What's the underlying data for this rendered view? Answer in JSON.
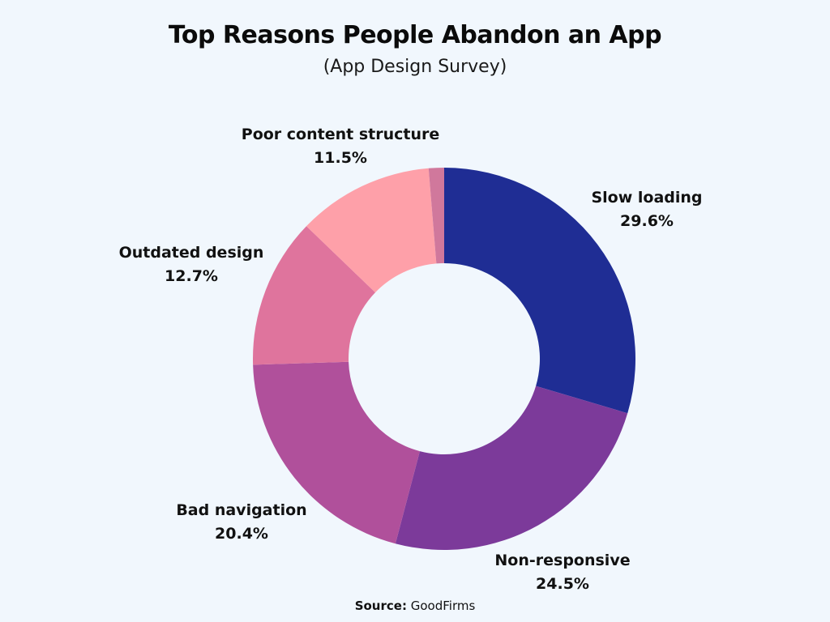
{
  "chart_data": {
    "type": "pie",
    "style": "donut",
    "title": "Top Reasons People Abandon an App",
    "subtitle": "(App Design Survey)",
    "labels": [
      "Slow loading",
      "Non-responsive",
      "Bad navigation",
      "Outdated design",
      "Poor content structure",
      ""
    ],
    "values": [
      29.6,
      24.5,
      20.4,
      12.7,
      11.5,
      1.3
    ],
    "value_labels": [
      "29.6%",
      "24.5%",
      "20.4%",
      "12.7%",
      "11.5%",
      ""
    ],
    "colors": [
      "#1f2d94",
      "#7c3a9a",
      "#b0509b",
      "#df749d",
      "#fea0a9",
      "#d0789c"
    ],
    "legend": "none"
  },
  "source": {
    "prefix": "Source:",
    "name": "GoodFirms"
  }
}
